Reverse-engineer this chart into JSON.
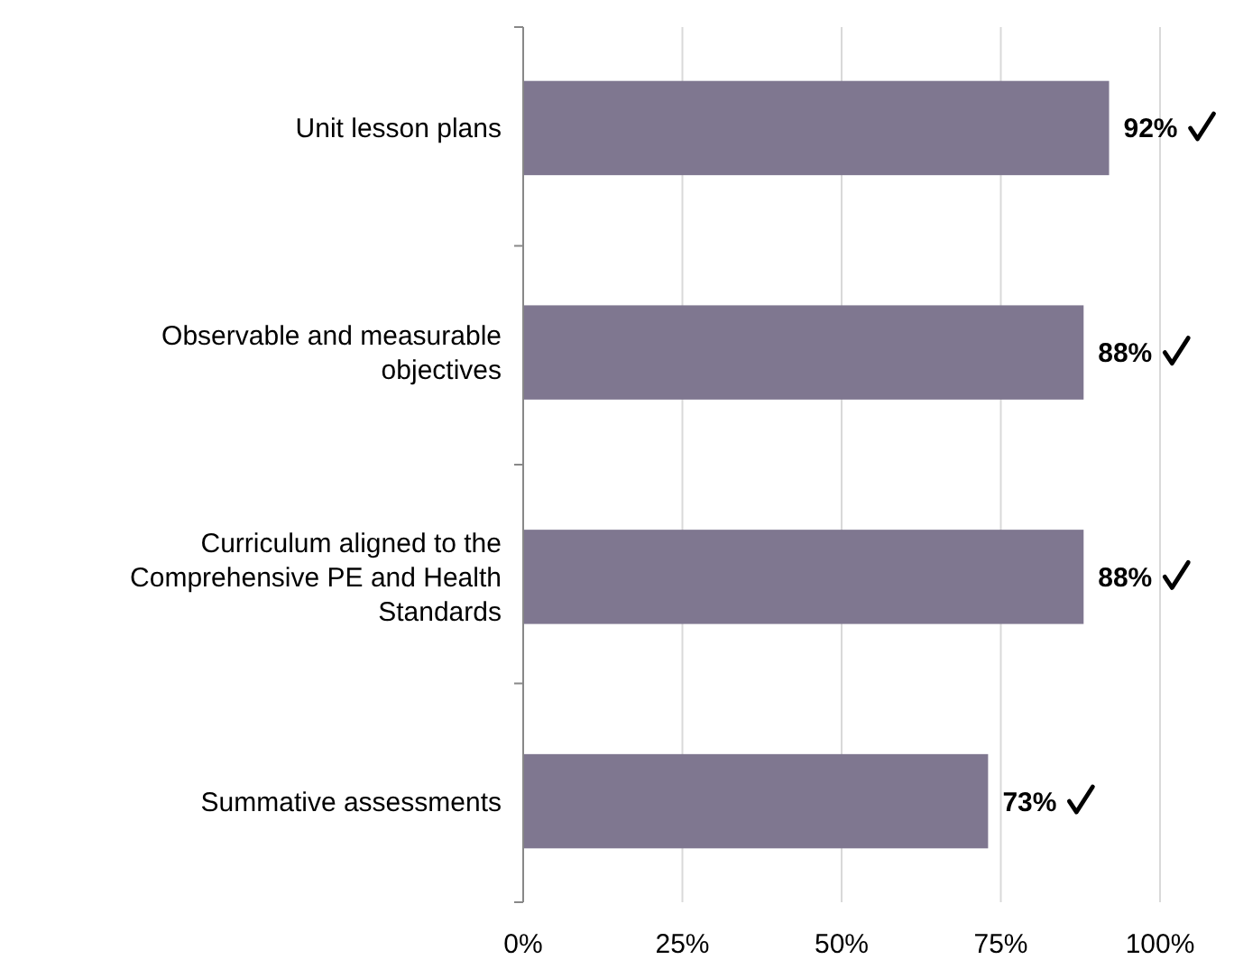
{
  "chart_data": {
    "type": "bar",
    "orientation": "horizontal",
    "categories": [
      "Unit lesson plans",
      "Observable and measurable objectives",
      "Curriculum aligned to the Comprehensive PE and Health Standards",
      "Summative assessments"
    ],
    "values": [
      92,
      88,
      88,
      73
    ],
    "color": "#7f7790",
    "value_labels": [
      "92%",
      "88%",
      "88%",
      "73%"
    ],
    "xlim": [
      0,
      100
    ],
    "xticks": [
      {
        "value": 0,
        "label": "0%"
      },
      {
        "value": 25,
        "label": "25%"
      },
      {
        "value": 50,
        "label": "50%"
      },
      {
        "value": 75,
        "label": "75%"
      },
      {
        "value": 100,
        "label": "100%"
      }
    ],
    "grid": "x"
  }
}
